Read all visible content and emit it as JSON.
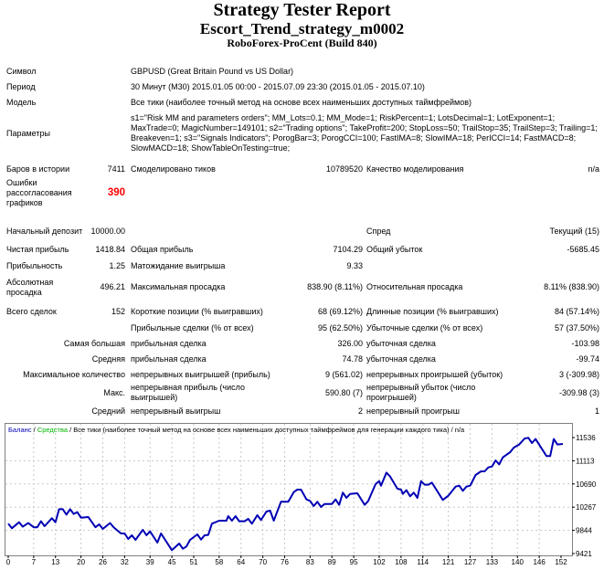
{
  "header": {
    "title": "Strategy Tester Report",
    "expert": "Escort_Trend_strategy_m0002",
    "server": "RoboForex-ProCent (Build 840)"
  },
  "info_rows": [
    {
      "label": "Символ",
      "value": "GBPUSD (Great Britain Pound vs US Dollar)"
    },
    {
      "label": "Период",
      "value": "30 Минут (M30) 2015.01.05 00:00 - 2015.07.09 23:30 (2015.01.05 - 2015.07.10)"
    },
    {
      "label": "Модель",
      "value": "Все тики (наиболее точный метод на основе всех наименьших доступных таймфреймов)"
    },
    {
      "label": "Параметры",
      "value": "s1=\"Risk MM and parameters orders\"; MM_Lots=0.1; MM_Mode=1; RiskPercent=1; LotsDecimal=1; LotExponent=1; MaxTrade=0; MagicNumber=149101; s2=\"Trading options\"; TakeProfit=200; StopLoss=50; TrailStop=35; TrailStep=3; Trailing=1; Breakeven=1; s3=\"Signals Indicators\"; PorogBar=3; PorogCCI=100; FastIMA=8; SlowIMA=18; PerICCI=14; FastMACD=8; SlowMACD=18; ShowTableOnTesting=true;"
    }
  ],
  "stat_rows": [
    {
      "c1": "Баров в истории",
      "c2": "7411",
      "c3": "Смоделировано тиков",
      "c4": "10789520",
      "c5": "Качество моделирования",
      "c6": "n/a"
    },
    {
      "c1": "Ошибки рассогласования графиков",
      "c2": "390",
      "c3": "",
      "c4": "",
      "c5": "",
      "c6": ""
    },
    {
      "c1": "Начальный депозит",
      "c2": "10000.00",
      "c3": "",
      "c4": "",
      "c5": "Спред",
      "c6": "Текущий (15)"
    },
    {
      "c1": "Чистая прибыль",
      "c2": "1418.84",
      "c3": "Общая прибыль",
      "c4": "7104.29",
      "c5": "Общий убыток",
      "c6": "-5685.45"
    },
    {
      "c1": "Прибыльность",
      "c2": "1.25",
      "c3": "Матожидание выигрыша",
      "c4": "9.33",
      "c5": "",
      "c6": ""
    },
    {
      "c1": "Абсолютная просадка",
      "c2": "496.21",
      "c3": "Максимальная просадка",
      "c4": "838.90 (8.11%)",
      "c5": "Относительная просадка",
      "c6": "8.11% (838.90)"
    },
    {
      "c1": "Всего сделок",
      "c2": "152",
      "c3": "Короткие позиции (% выигравших)",
      "c4": "68 (69.12%)",
      "c5": "Длинные позиции (% выигравших)",
      "c6": "84 (57.14%)"
    },
    {
      "lead": "",
      "c3": "Прибыльные сделки (% от всех)",
      "c4": "95 (62.50%)",
      "c5": "Убыточные сделки (% от всех)",
      "c6": "57 (37.50%)"
    },
    {
      "lead": "Самая большая",
      "c3": "прибыльная сделка",
      "c4": "326.00",
      "c5": "убыточная сделка",
      "c6": "-103.98"
    },
    {
      "lead": "Средняя",
      "c3": "прибыльная сделка",
      "c4": "74.78",
      "c5": "убыточная сделка",
      "c6": "-99.74"
    },
    {
      "lead": "Максимальное количество",
      "c3": "непрерывных выигрышей (прибыль)",
      "c4": "9 (561.02)",
      "c5": "непрерывных проигрышей (убыток)",
      "c6": "3 (-309.98)"
    },
    {
      "lead": "Макс.",
      "c3": "непрерывная прибыль (число выигрышей)",
      "c4": "590.80 (7)",
      "c5": "непрерывный убыток (число проигрышей)",
      "c6": "-309.98 (3)"
    },
    {
      "lead": "Средний",
      "c3": "непрерывный выигрыш",
      "c4": "2",
      "c5": "непрерывный проигрыш",
      "c6": "1"
    }
  ],
  "colors": {
    "balance": "#0000b4",
    "equity": "#00b400",
    "error": "#ff0000",
    "grid": "#c8c8c8"
  },
  "chart_data": {
    "type": "line",
    "legend": {
      "balance": "Баланс",
      "sep1": " / ",
      "equity": "Средства",
      "rest": " / Все тики (наиболее точный метод на основе всех наименьших доступных таймфреймов для генерации каждого тика) / n/a"
    },
    "legend_position": "top-left",
    "grid": true,
    "ylim": [
      9421,
      11536
    ],
    "xlim": [
      0,
      152
    ],
    "y_ticks": [
      "11536",
      "11113",
      "10690",
      "10267",
      "9844",
      "9421"
    ],
    "x_ticks": [
      "0",
      "7",
      "13",
      "20",
      "26",
      "32",
      "39",
      "45",
      "51",
      "58",
      "64",
      "70",
      "76",
      "83",
      "89",
      "95",
      "102",
      "108",
      "114",
      "121",
      "127",
      "133",
      "140",
      "146",
      "152"
    ],
    "series": [
      {
        "name": "Баланс",
        "points": [
          [
            0,
            9965
          ],
          [
            1,
            9882
          ],
          [
            3,
            9993
          ],
          [
            4,
            9910
          ],
          [
            5.5,
            9977
          ],
          [
            7,
            9900
          ],
          [
            8,
            9900
          ],
          [
            9,
            10010
          ],
          [
            10,
            9920
          ],
          [
            12,
            10065
          ],
          [
            13,
            9993
          ],
          [
            14,
            10231
          ],
          [
            15,
            10231
          ],
          [
            16,
            10131
          ],
          [
            17,
            10231
          ],
          [
            18,
            10143
          ],
          [
            19,
            10176
          ],
          [
            20,
            10076
          ],
          [
            22,
            10087
          ],
          [
            24,
            9900
          ],
          [
            25,
            9954
          ],
          [
            26,
            9870
          ],
          [
            28,
            9977
          ],
          [
            29,
            9900
          ],
          [
            31,
            9787
          ],
          [
            32,
            9787
          ],
          [
            33,
            9687
          ],
          [
            34,
            9754
          ],
          [
            35,
            9671
          ],
          [
            37,
            9854
          ],
          [
            38,
            9754
          ],
          [
            39,
            9826
          ],
          [
            41,
            9621
          ],
          [
            42,
            9787
          ],
          [
            45,
            9482
          ],
          [
            47,
            9604
          ],
          [
            48,
            9510
          ],
          [
            49,
            9549
          ],
          [
            50,
            9671
          ],
          [
            52,
            9771
          ],
          [
            53,
            9676
          ],
          [
            54,
            9754
          ],
          [
            55,
            9760
          ],
          [
            56,
            9965
          ],
          [
            58,
            10021
          ],
          [
            60,
            10021
          ],
          [
            60.5,
            10104
          ],
          [
            61.5,
            10021
          ],
          [
            62.5,
            10104
          ],
          [
            63.5,
            10010
          ],
          [
            65,
            10010
          ],
          [
            66,
            10054
          ],
          [
            67,
            9965
          ],
          [
            68.5,
            10121
          ],
          [
            69.5,
            10032
          ],
          [
            71,
            10187
          ],
          [
            72,
            10204
          ],
          [
            73,
            10021
          ],
          [
            75,
            10365
          ],
          [
            77,
            10365
          ],
          [
            78.5,
            10542
          ],
          [
            79.5,
            10586
          ],
          [
            80.5,
            10586
          ],
          [
            82,
            10409
          ],
          [
            83,
            10381
          ],
          [
            84,
            10287
          ],
          [
            85,
            10365
          ],
          [
            86,
            10270
          ],
          [
            87,
            10326
          ],
          [
            89,
            10326
          ],
          [
            90,
            10409
          ],
          [
            91,
            10309
          ],
          [
            92,
            10531
          ],
          [
            93,
            10437
          ],
          [
            94,
            10509
          ],
          [
            96,
            10520
          ],
          [
            98,
            10309
          ],
          [
            99,
            10381
          ],
          [
            101,
            10687
          ],
          [
            102,
            10742
          ],
          [
            102.5,
            10659
          ],
          [
            104,
            10897
          ],
          [
            105,
            10826
          ],
          [
            107,
            10603
          ],
          [
            108,
            10586
          ],
          [
            108.5,
            10509
          ],
          [
            109.5,
            10576
          ],
          [
            110.5,
            10465
          ],
          [
            111.5,
            10531
          ],
          [
            112.5,
            10437
          ],
          [
            113.5,
            10742
          ],
          [
            114.5,
            10676
          ],
          [
            115.5,
            10676
          ],
          [
            116.5,
            10714
          ],
          [
            119.5,
            10398
          ],
          [
            121,
            10476
          ],
          [
            123,
            10642
          ],
          [
            124,
            10659
          ],
          [
            125,
            10565
          ],
          [
            126,
            10642
          ],
          [
            127,
            10659
          ],
          [
            128.5,
            10853
          ],
          [
            130,
            10920
          ],
          [
            131,
            10920
          ],
          [
            132,
            10992
          ],
          [
            133,
            11008
          ],
          [
            134,
            11119
          ],
          [
            135,
            11047
          ],
          [
            136,
            11175
          ],
          [
            138,
            11270
          ],
          [
            139,
            11353
          ],
          [
            140.5,
            11409
          ],
          [
            142,
            11520
          ],
          [
            143,
            11531
          ],
          [
            144,
            11436
          ],
          [
            145,
            11509
          ],
          [
            148,
            11198
          ],
          [
            149,
            11198
          ],
          [
            150,
            11509
          ],
          [
            151,
            11409
          ],
          [
            152.5,
            11419
          ]
        ]
      }
    ]
  }
}
